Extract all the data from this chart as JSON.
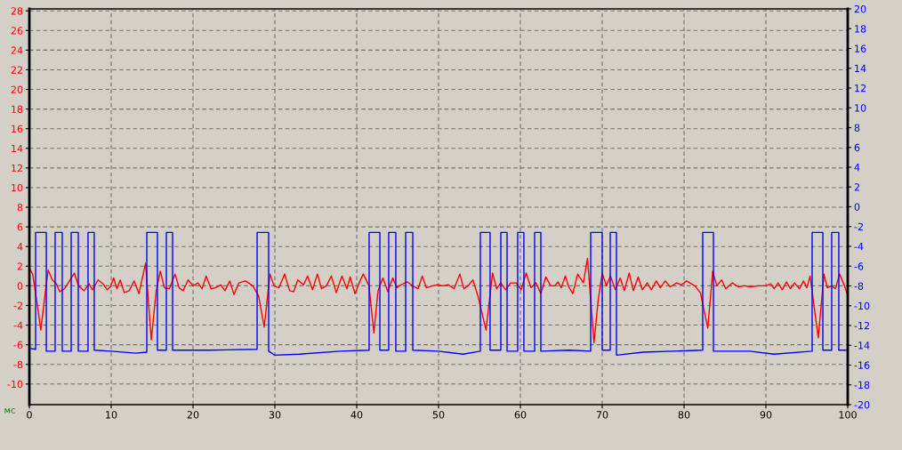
{
  "chart_data": {
    "type": "line",
    "xlabel": "мс",
    "xlim": [
      0,
      100
    ],
    "xticks": [
      0,
      10,
      20,
      30,
      40,
      50,
      60,
      70,
      80,
      90,
      100
    ],
    "ylim": [
      -12.1,
      28.2
    ],
    "yticks": [
      -10,
      -8,
      -6,
      -4,
      -2,
      0,
      2,
      4,
      6,
      8,
      10,
      12,
      14,
      16,
      18,
      20,
      22,
      24,
      26,
      28
    ],
    "y2lim": [
      -20,
      20
    ],
    "y2ticks": [
      -20,
      -18,
      -16,
      -14,
      -12,
      -10,
      -8,
      -6,
      -4,
      -2,
      0,
      2,
      4,
      6,
      8,
      10,
      12,
      14,
      16,
      18,
      20
    ],
    "grid": true,
    "series": [
      {
        "color": "#ff0000",
        "x": [
          0,
          0.4,
          0.9,
          1.4,
          1.9,
          2.3,
          2.8,
          3.3,
          3.7,
          4.3,
          4.9,
          5.5,
          6.0,
          6.7,
          7.3,
          7.7,
          8.4,
          9.0,
          9.5,
          9.9,
          10.3,
          10.7,
          11.1,
          11.6,
          12.2,
          12.8,
          13.4,
          14.2,
          14.9,
          15.5,
          16.0,
          16.5,
          17.1,
          17.8,
          18.3,
          18.8,
          19.4,
          20.0,
          20.6,
          21.1,
          21.6,
          22.2,
          22.7,
          23.4,
          23.9,
          24.5,
          25.0,
          25.6,
          26.4,
          27.3,
          28.0,
          28.7,
          29.4,
          29.9,
          30.5,
          31.2,
          31.8,
          32.3,
          32.8,
          33.5,
          34.0,
          34.6,
          35.2,
          35.7,
          36.3,
          36.9,
          37.5,
          38.2,
          38.8,
          39.2,
          39.8,
          40.4,
          40.8,
          41.5,
          42.1,
          42.6,
          43.2,
          43.8,
          44.4,
          44.9,
          45.4,
          46.2,
          46.8,
          47.5,
          48.0,
          48.5,
          49.3,
          49.9,
          50.5,
          51.2,
          51.9,
          52.6,
          53.1,
          53.6,
          54.2,
          54.8,
          55.8,
          56.6,
          57.1,
          57.6,
          58.2,
          58.8,
          59.5,
          60.1,
          60.7,
          61.3,
          61.9,
          62.5,
          63.1,
          63.7,
          64.2,
          64.6,
          65.0,
          65.5,
          65.9,
          66.4,
          67.0,
          67.7,
          68.2,
          69.0,
          69.5,
          70.0,
          70.5,
          71.0,
          71.6,
          72.2,
          72.7,
          73.3,
          73.8,
          74.4,
          74.9,
          75.5,
          76.0,
          76.6,
          77.1,
          77.7,
          78.3,
          79.1,
          79.7,
          80.3,
          81.3,
          82.0,
          82.9,
          83.5,
          84.0,
          84.6,
          85.1,
          85.9,
          86.6,
          87.4,
          88.1,
          89.1,
          90.0,
          90.6,
          91.0,
          91.5,
          92.0,
          92.5,
          93.0,
          93.5,
          94.1,
          94.6,
          95.0,
          95.4,
          96.4,
          97.1,
          97.5,
          98.0,
          98.5,
          99.0,
          99.6,
          100
        ],
        "values": [
          1.8,
          1.2,
          -1.5,
          -4.5,
          -1.0,
          1.6,
          0.6,
          0.2,
          -0.6,
          -0.3,
          0.5,
          1.3,
          0.0,
          -0.5,
          0.2,
          -0.4,
          0.6,
          0.2,
          -0.4,
          -0.1,
          0.8,
          -0.3,
          0.6,
          -0.7,
          -0.5,
          0.5,
          -0.8,
          2.3,
          -5.5,
          -0.5,
          1.5,
          -0.2,
          -0.3,
          1.2,
          -0.2,
          -0.5,
          0.6,
          0.0,
          0.3,
          -0.3,
          1.0,
          -0.3,
          -0.2,
          0.1,
          -0.5,
          0.5,
          -0.9,
          0.3,
          0.5,
          0.0,
          -1.0,
          -4.2,
          1.2,
          0.0,
          -0.2,
          1.2,
          -0.5,
          -0.6,
          0.6,
          0.1,
          1.0,
          -0.4,
          1.2,
          -0.3,
          0.0,
          1.0,
          -0.7,
          1.0,
          -0.3,
          0.9,
          -0.8,
          0.5,
          1.2,
          0.0,
          -4.8,
          -0.5,
          0.8,
          -0.6,
          0.8,
          -0.2,
          0.1,
          0.4,
          0.0,
          -0.3,
          1.0,
          -0.2,
          0.0,
          0.1,
          0.0,
          0.1,
          -0.3,
          1.2,
          -0.3,
          0.0,
          0.6,
          -1.0,
          -4.5,
          1.3,
          -0.3,
          0.3,
          -0.4,
          0.3,
          0.3,
          -0.4,
          1.3,
          -0.2,
          0.3,
          -0.8,
          0.9,
          0.0,
          0.0,
          0.4,
          -0.2,
          1.0,
          -0.1,
          -0.8,
          1.2,
          0.3,
          2.8,
          -5.8,
          -1.5,
          1.3,
          0.0,
          1.0,
          -0.4,
          0.8,
          -0.5,
          1.3,
          -0.5,
          0.9,
          -0.4,
          0.3,
          -0.4,
          0.5,
          -0.2,
          0.5,
          -0.1,
          0.3,
          0.1,
          0.5,
          0.0,
          -0.7,
          -4.3,
          1.5,
          0.0,
          0.6,
          -0.3,
          0.3,
          -0.1,
          0.0,
          -0.1,
          0.0,
          0.0,
          0.2,
          -0.3,
          0.3,
          -0.4,
          0.4,
          -0.3,
          0.3,
          -0.3,
          0.5,
          -0.2,
          1.0,
          -5.3,
          1.2,
          -0.2,
          0.0,
          -0.3,
          1.2,
          0.0,
          -1.0
        ]
      },
      {
        "color": "#0000ff",
        "axis": "y2",
        "x": [
          0,
          0.76,
          0.76,
          2.07,
          2.07,
          3.15,
          3.15,
          4.02,
          4.02,
          5.11,
          5.11,
          5.98,
          5.98,
          7.17,
          7.17,
          7.93,
          7.93,
          10,
          13,
          14.35,
          14.35,
          15.65,
          15.65,
          16.74,
          16.74,
          17.5,
          17.5,
          22,
          27.83,
          27.83,
          29.24,
          29.24,
          30,
          33,
          38,
          41.52,
          41.52,
          42.83,
          42.83,
          43.91,
          43.91,
          44.78,
          44.78,
          45.98,
          45.98,
          46.85,
          46.85,
          50,
          53,
          55.11,
          55.11,
          56.3,
          56.3,
          57.61,
          57.61,
          58.37,
          58.37,
          59.67,
          59.67,
          60.43,
          60.43,
          61.74,
          61.74,
          62.5,
          62.5,
          66,
          68.59,
          68.59,
          70,
          70,
          70.98,
          70.98,
          71.74,
          71.74,
          75,
          82.28,
          82.28,
          83.59,
          83.59,
          88,
          91,
          95.65,
          95.65,
          96.96,
          96.96,
          98.04,
          98.04,
          98.91,
          98.91,
          100
        ],
        "values": [
          -14.3,
          -14.4,
          -2.6,
          -2.6,
          -14.6,
          -14.6,
          -2.6,
          -2.6,
          -14.6,
          -14.6,
          -2.6,
          -2.6,
          -14.6,
          -14.6,
          -2.6,
          -2.6,
          -14.5,
          -14.6,
          -14.8,
          -14.7,
          -2.6,
          -2.6,
          -14.5,
          -14.5,
          -2.6,
          -2.6,
          -14.5,
          -14.5,
          -14.4,
          -2.6,
          -2.6,
          -14.6,
          -15.0,
          -14.9,
          -14.6,
          -14.5,
          -2.6,
          -2.6,
          -14.5,
          -14.5,
          -2.6,
          -2.6,
          -14.6,
          -14.6,
          -2.6,
          -2.6,
          -14.5,
          -14.6,
          -14.9,
          -14.6,
          -2.6,
          -2.6,
          -14.5,
          -14.5,
          -2.6,
          -2.6,
          -14.6,
          -14.6,
          -2.6,
          -2.6,
          -14.6,
          -14.6,
          -2.6,
          -2.6,
          -14.6,
          -14.5,
          -14.6,
          -2.6,
          -2.6,
          -14.5,
          -14.5,
          -2.6,
          -2.6,
          -15.0,
          -14.7,
          -14.5,
          -2.6,
          -2.6,
          -14.6,
          -14.6,
          -14.9,
          -14.6,
          -2.6,
          -2.6,
          -14.5,
          -14.5,
          -2.6,
          -2.6,
          -14.5,
          -14.5
        ]
      }
    ]
  }
}
